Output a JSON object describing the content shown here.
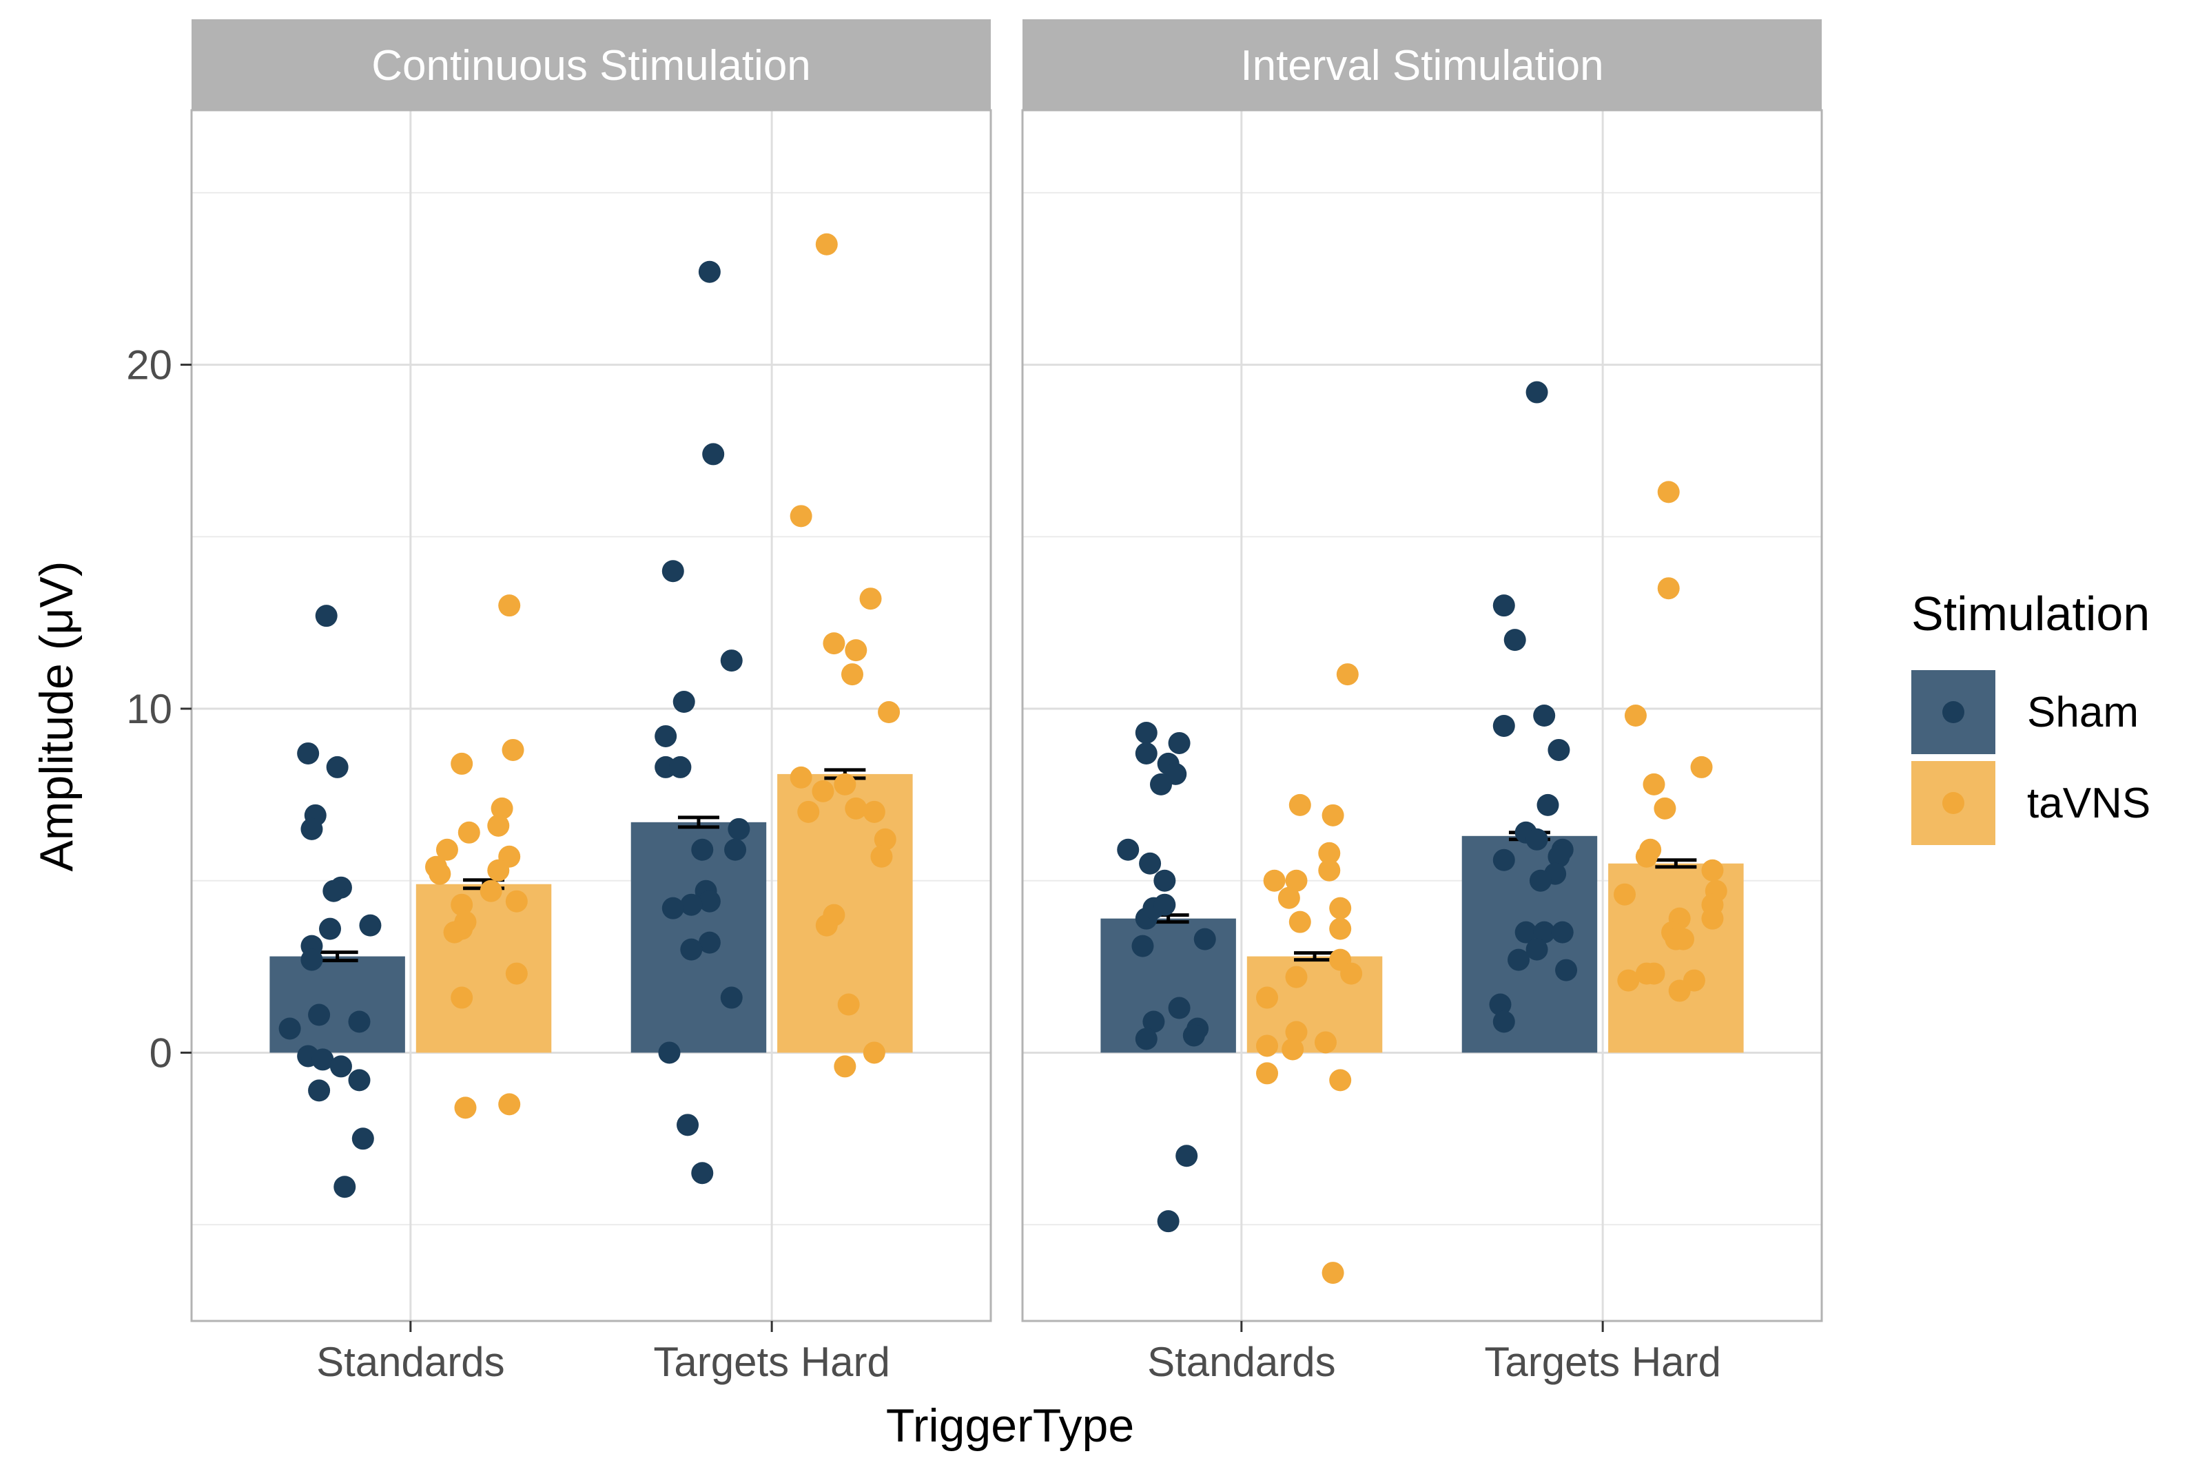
{
  "chart_data": {
    "type": "bar",
    "xlabel": "TriggerType",
    "ylabel": "Amplitude (μV)",
    "ylim": [
      -7.8,
      27.4
    ],
    "yticks": [
      0,
      10,
      20
    ],
    "grid": true,
    "categories": [
      "Standards",
      "Targets Hard"
    ],
    "legend": {
      "title": "Stimulation",
      "position": "right",
      "entries": [
        {
          "name": "Sham",
          "color": "#1b3d5a",
          "fill": "#45627c"
        },
        {
          "name": "taVNS",
          "color": "#f2a93a",
          "fill": "#f3bb62"
        }
      ]
    },
    "panels": [
      {
        "title": "Continuous Stimulation",
        "groups": [
          {
            "category": "Standards",
            "series": [
              {
                "name": "Sham",
                "mean": 2.8,
                "se": 0.12,
                "points": [
                  [
                    -0.23,
                    12.7
                  ],
                  [
                    -0.28,
                    8.7
                  ],
                  [
                    -0.2,
                    8.3
                  ],
                  [
                    -0.26,
                    6.9
                  ],
                  [
                    -0.27,
                    6.5
                  ],
                  [
                    -0.19,
                    4.8
                  ],
                  [
                    -0.21,
                    4.7
                  ],
                  [
                    -0.11,
                    3.7
                  ],
                  [
                    -0.22,
                    3.6
                  ],
                  [
                    -0.27,
                    3.1
                  ],
                  [
                    -0.27,
                    2.7
                  ],
                  [
                    -0.25,
                    1.1
                  ],
                  [
                    -0.14,
                    0.9
                  ],
                  [
                    -0.33,
                    0.7
                  ],
                  [
                    -0.28,
                    -0.1
                  ],
                  [
                    -0.24,
                    -0.2
                  ],
                  [
                    -0.19,
                    -0.4
                  ],
                  [
                    -0.14,
                    -0.8
                  ],
                  [
                    -0.25,
                    -1.1
                  ],
                  [
                    -0.13,
                    -2.5
                  ],
                  [
                    -0.18,
                    -3.9
                  ]
                ]
              },
              {
                "name": "taVNS",
                "mean": 4.9,
                "se": 0.12,
                "points": [
                  [
                    0.27,
                    13.0
                  ],
                  [
                    0.28,
                    8.8
                  ],
                  [
                    0.14,
                    8.4
                  ],
                  [
                    0.25,
                    7.1
                  ],
                  [
                    0.16,
                    6.4
                  ],
                  [
                    0.24,
                    6.6
                  ],
                  [
                    0.1,
                    5.9
                  ],
                  [
                    0.27,
                    5.7
                  ],
                  [
                    0.07,
                    5.4
                  ],
                  [
                    0.08,
                    5.2
                  ],
                  [
                    0.24,
                    5.3
                  ],
                  [
                    0.22,
                    4.7
                  ],
                  [
                    0.29,
                    4.4
                  ],
                  [
                    0.14,
                    4.3
                  ],
                  [
                    0.15,
                    3.8
                  ],
                  [
                    0.14,
                    3.6
                  ],
                  [
                    0.12,
                    3.5
                  ],
                  [
                    0.29,
                    2.3
                  ],
                  [
                    0.14,
                    1.6
                  ],
                  [
                    0.15,
                    -1.6
                  ],
                  [
                    0.27,
                    -1.5
                  ]
                ]
              }
            ]
          },
          {
            "category": "Targets Hard",
            "series": [
              {
                "name": "Sham",
                "mean": 6.7,
                "se": 0.14,
                "points": [
                  [
                    -0.17,
                    22.7
                  ],
                  [
                    -0.16,
                    17.4
                  ],
                  [
                    -0.27,
                    14.0
                  ],
                  [
                    -0.11,
                    11.4
                  ],
                  [
                    -0.24,
                    10.2
                  ],
                  [
                    -0.29,
                    9.2
                  ],
                  [
                    -0.29,
                    8.3
                  ],
                  [
                    -0.25,
                    8.3
                  ],
                  [
                    -0.09,
                    6.5
                  ],
                  [
                    -0.19,
                    5.9
                  ],
                  [
                    -0.1,
                    5.9
                  ],
                  [
                    -0.18,
                    4.7
                  ],
                  [
                    -0.17,
                    4.4
                  ],
                  [
                    -0.22,
                    4.3
                  ],
                  [
                    -0.27,
                    4.2
                  ],
                  [
                    -0.17,
                    3.2
                  ],
                  [
                    -0.22,
                    3.0
                  ],
                  [
                    -0.11,
                    1.6
                  ],
                  [
                    -0.28,
                    0.0
                  ],
                  [
                    -0.23,
                    -2.1
                  ],
                  [
                    -0.19,
                    -3.5
                  ]
                ]
              },
              {
                "name": "taVNS",
                "mean": 8.1,
                "se": 0.12,
                "points": [
                  [
                    0.15,
                    23.5
                  ],
                  [
                    0.08,
                    15.6
                  ],
                  [
                    0.27,
                    13.2
                  ],
                  [
                    0.17,
                    11.9
                  ],
                  [
                    0.23,
                    11.7
                  ],
                  [
                    0.22,
                    11.0
                  ],
                  [
                    0.32,
                    9.9
                  ],
                  [
                    0.08,
                    8.0
                  ],
                  [
                    0.14,
                    7.6
                  ],
                  [
                    0.2,
                    7.8
                  ],
                  [
                    0.23,
                    7.1
                  ],
                  [
                    0.28,
                    7.0
                  ],
                  [
                    0.1,
                    7.0
                  ],
                  [
                    0.31,
                    6.2
                  ],
                  [
                    0.3,
                    5.7
                  ],
                  [
                    0.17,
                    4.0
                  ],
                  [
                    0.15,
                    3.7
                  ],
                  [
                    0.21,
                    1.4
                  ],
                  [
                    0.2,
                    -0.4
                  ],
                  [
                    0.28,
                    0.0
                  ]
                ]
              }
            ]
          }
        ]
      },
      {
        "title": "Interval Stimulation",
        "groups": [
          {
            "category": "Standards",
            "series": [
              {
                "name": "Sham",
                "mean": 3.9,
                "se": 0.1,
                "points": [
                  [
                    -0.26,
                    9.3
                  ],
                  [
                    -0.17,
                    9.0
                  ],
                  [
                    -0.26,
                    8.7
                  ],
                  [
                    -0.2,
                    8.4
                  ],
                  [
                    -0.18,
                    8.1
                  ],
                  [
                    -0.22,
                    7.8
                  ],
                  [
                    -0.31,
                    5.9
                  ],
                  [
                    -0.25,
                    5.5
                  ],
                  [
                    -0.21,
                    5.0
                  ],
                  [
                    -0.26,
                    3.9
                  ],
                  [
                    -0.24,
                    4.2
                  ],
                  [
                    -0.21,
                    4.3
                  ],
                  [
                    -0.1,
                    3.3
                  ],
                  [
                    -0.27,
                    3.1
                  ],
                  [
                    -0.17,
                    1.3
                  ],
                  [
                    -0.24,
                    0.9
                  ],
                  [
                    -0.12,
                    0.7
                  ],
                  [
                    -0.13,
                    0.5
                  ],
                  [
                    -0.26,
                    0.4
                  ],
                  [
                    -0.15,
                    -3.0
                  ],
                  [
                    -0.2,
                    -4.9
                  ]
                ]
              },
              {
                "name": "taVNS",
                "mean": 2.8,
                "se": 0.1,
                "points": [
                  [
                    0.29,
                    11.0
                  ],
                  [
                    0.16,
                    7.2
                  ],
                  [
                    0.25,
                    6.9
                  ],
                  [
                    0.24,
                    5.8
                  ],
                  [
                    0.09,
                    5.0
                  ],
                  [
                    0.15,
                    5.0
                  ],
                  [
                    0.24,
                    5.3
                  ],
                  [
                    0.13,
                    4.5
                  ],
                  [
                    0.27,
                    4.2
                  ],
                  [
                    0.16,
                    3.8
                  ],
                  [
                    0.27,
                    3.6
                  ],
                  [
                    0.27,
                    2.7
                  ],
                  [
                    0.3,
                    2.3
                  ],
                  [
                    0.15,
                    2.2
                  ],
                  [
                    0.07,
                    1.6
                  ],
                  [
                    0.15,
                    0.6
                  ],
                  [
                    0.23,
                    0.3
                  ],
                  [
                    0.07,
                    0.2
                  ],
                  [
                    0.14,
                    0.1
                  ],
                  [
                    0.07,
                    -0.6
                  ],
                  [
                    0.27,
                    -0.8
                  ],
                  [
                    0.25,
                    -6.4
                  ]
                ]
              }
            ]
          },
          {
            "category": "Targets Hard",
            "series": [
              {
                "name": "Sham",
                "mean": 6.3,
                "se": 0.1,
                "points": [
                  [
                    -0.18,
                    19.2
                  ],
                  [
                    -0.27,
                    13.0
                  ],
                  [
                    -0.24,
                    12.0
                  ],
                  [
                    -0.16,
                    9.8
                  ],
                  [
                    -0.27,
                    9.5
                  ],
                  [
                    -0.12,
                    8.8
                  ],
                  [
                    -0.15,
                    7.2
                  ],
                  [
                    -0.21,
                    6.4
                  ],
                  [
                    -0.18,
                    6.2
                  ],
                  [
                    -0.11,
                    5.9
                  ],
                  [
                    -0.12,
                    5.7
                  ],
                  [
                    -0.27,
                    5.6
                  ],
                  [
                    -0.13,
                    5.2
                  ],
                  [
                    -0.17,
                    5.0
                  ],
                  [
                    -0.21,
                    3.5
                  ],
                  [
                    -0.16,
                    3.5
                  ],
                  [
                    -0.11,
                    3.5
                  ],
                  [
                    -0.18,
                    3.0
                  ],
                  [
                    -0.23,
                    2.7
                  ],
                  [
                    -0.1,
                    2.4
                  ],
                  [
                    -0.28,
                    1.4
                  ],
                  [
                    -0.27,
                    0.9
                  ]
                ]
              },
              {
                "name": "taVNS",
                "mean": 5.5,
                "se": 0.1,
                "points": [
                  [
                    0.18,
                    16.3
                  ],
                  [
                    0.18,
                    13.5
                  ],
                  [
                    0.09,
                    9.8
                  ],
                  [
                    0.14,
                    7.8
                  ],
                  [
                    0.17,
                    7.1
                  ],
                  [
                    0.27,
                    8.3
                  ],
                  [
                    0.13,
                    5.9
                  ],
                  [
                    0.12,
                    5.7
                  ],
                  [
                    0.3,
                    5.3
                  ],
                  [
                    0.06,
                    4.6
                  ],
                  [
                    0.31,
                    4.7
                  ],
                  [
                    0.3,
                    4.3
                  ],
                  [
                    0.21,
                    3.9
                  ],
                  [
                    0.3,
                    3.9
                  ],
                  [
                    0.19,
                    3.5
                  ],
                  [
                    0.22,
                    3.3
                  ],
                  [
                    0.2,
                    3.3
                  ],
                  [
                    0.14,
                    2.3
                  ],
                  [
                    0.12,
                    2.3
                  ],
                  [
                    0.07,
                    2.1
                  ],
                  [
                    0.25,
                    2.1
                  ],
                  [
                    0.21,
                    1.8
                  ]
                ]
              }
            ]
          }
        ]
      }
    ]
  }
}
